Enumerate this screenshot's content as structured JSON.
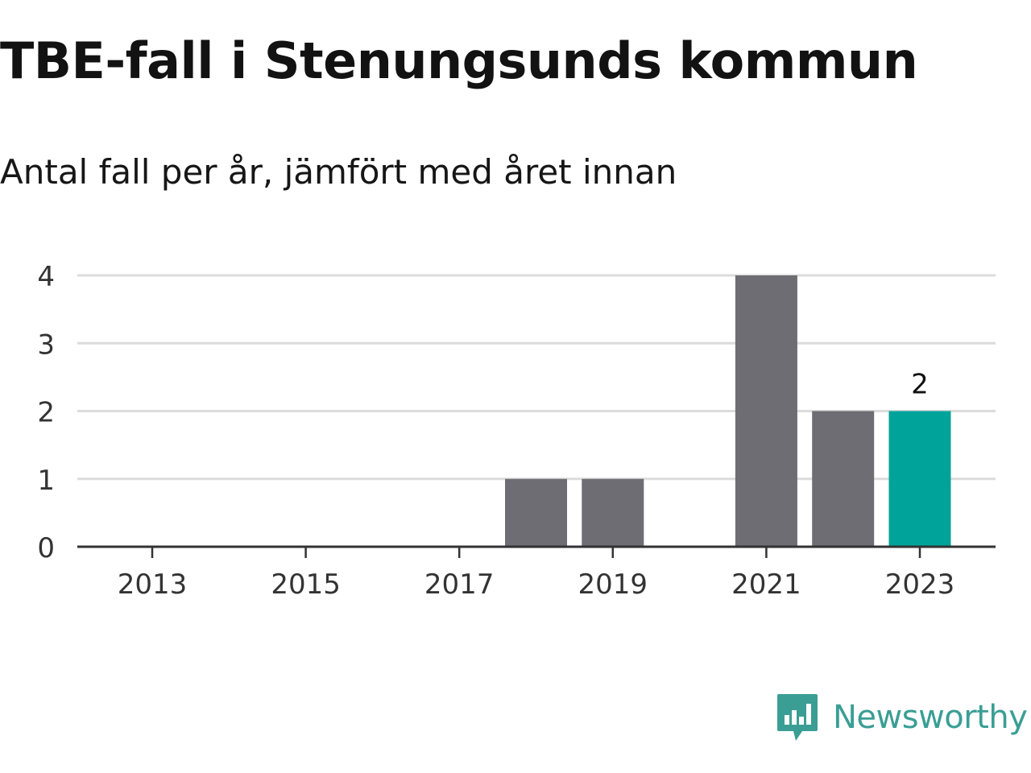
{
  "header": {
    "title": "TBE-fall i Stenungsunds kommun",
    "subtitle": "Antal fall per år, jämfört med året innan"
  },
  "chart_data": {
    "type": "bar",
    "categories": [
      "2013",
      "2014",
      "2015",
      "2016",
      "2017",
      "2018",
      "2019",
      "2020",
      "2021",
      "2022",
      "2023"
    ],
    "values": [
      0,
      0,
      0,
      0,
      0,
      1,
      1,
      0,
      4,
      2,
      2
    ],
    "title": "TBE-fall i Stenungsunds kommun",
    "subtitle": "Antal fall per år, jämfört med året innan",
    "ylim": [
      0,
      4
    ],
    "yticks": [
      "0",
      "1",
      "2",
      "3",
      "4"
    ],
    "xticks": [
      "2013",
      "2015",
      "2017",
      "2019",
      "2021",
      "2023"
    ],
    "highlight_index": 10,
    "highlight_label": "2",
    "grid": true,
    "colors": {
      "bar": "#6e6d73",
      "highlight": "#00a39a",
      "grid": "#dcdcdc",
      "axis": "#333333",
      "tick_label": "#333333"
    }
  },
  "brand": {
    "name": "Newsworthy",
    "icon": "newsworthy-logo-icon",
    "color": "#3a9e95"
  }
}
